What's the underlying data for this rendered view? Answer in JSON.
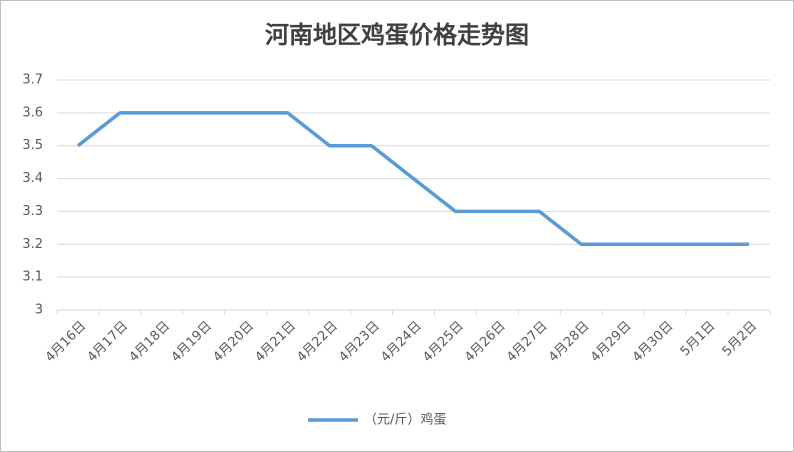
{
  "chart_data": {
    "type": "line",
    "title": "河南地区鸡蛋价格走势图",
    "categories": [
      "4月16日",
      "4月17日",
      "4月18日",
      "4月19日",
      "4月20日",
      "4月21日",
      "4月22日",
      "4月23日",
      "4月24日",
      "4月25日",
      "4月26日",
      "4月27日",
      "4月28日",
      "4月29日",
      "4月30日",
      "5月1日",
      "5月2日"
    ],
    "series": [
      {
        "name": "（元/斤）鸡蛋",
        "color": "#5b9bd5",
        "values": [
          3.5,
          3.6,
          3.6,
          3.6,
          3.6,
          3.6,
          3.5,
          3.5,
          3.4,
          3.3,
          3.3,
          3.3,
          3.2,
          3.2,
          3.2,
          3.2,
          3.2
        ]
      }
    ],
    "ylim": [
      3,
      3.7
    ],
    "yticks": [
      3,
      3.1,
      3.2,
      3.3,
      3.4,
      3.5,
      3.6,
      3.7
    ],
    "grid": true,
    "legend": "bottom"
  }
}
